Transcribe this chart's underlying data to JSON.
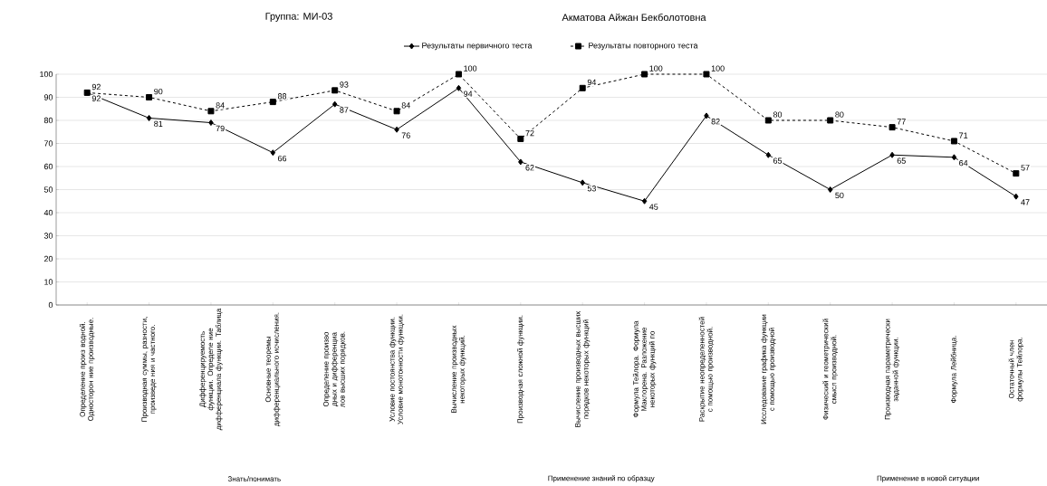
{
  "chart_data": {
    "type": "line",
    "title": "Группа: МИ-03",
    "subtitle": "Акматова Айжан Бекболотовна",
    "categories": [
      "Определение произ водной. Односторон ние производные.",
      "Производная суммы, разности, произведе ния и частного.",
      "Дифференцируемость функции. Определе ние дифференциала функции. Таблица",
      "Основные теоремы дифференциального исчисления.",
      "Определение произво дных и дифференциа лов высших порядков.",
      "Условие постоянства функции. Условие монотонности функции.",
      "Вычисление производных некоторых функций.",
      "Производная сложной функции.",
      "Вычисление производных высших порядков некоторых функций",
      "Формула Тейлора. Формула Маклорена. Разложение некоторых функций по",
      "Раскрытие неопределенностей с помощью производной.",
      "Исследование графика функции с помощью производной",
      "Физический и геометрический смысл производной.",
      "Производная параметрически заданной функции.",
      "Формула Лейбница.",
      "Остаточный член формулы Тейлора."
    ],
    "series": [
      {
        "name": "Результаты первичного теста",
        "color": "#000000",
        "marker": "diamond",
        "line_style": "solid",
        "values": [
          92,
          81,
          79,
          66,
          87,
          76,
          94,
          62,
          53,
          45,
          82,
          65,
          50,
          65,
          64,
          47
        ]
      },
      {
        "name": "Результаты повторного теста",
        "color": "#000000",
        "marker": "square",
        "line_style": "dashed",
        "values": [
          92,
          90,
          84,
          88,
          93,
          84,
          100,
          72,
          94,
          100,
          100,
          80,
          80,
          77,
          71,
          57
        ]
      }
    ],
    "ylim": [
      0,
      100
    ],
    "yticks": [
      0,
      10,
      20,
      30,
      40,
      50,
      60,
      70,
      80,
      90,
      100
    ],
    "grid": "y",
    "legend": "top",
    "data_labels": true,
    "annotations": [
      "Знать/понимать",
      "Применение знаний по образцу",
      "Применение в новой ситуации"
    ]
  }
}
